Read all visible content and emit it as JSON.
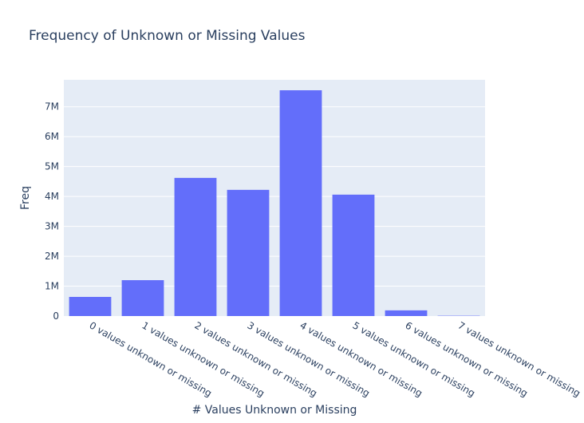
{
  "chart_data": {
    "type": "bar",
    "title": "Frequency of Unknown or Missing Values",
    "xlabel": "# Values Unknown or Missing",
    "ylabel": "Freq",
    "categories": [
      "0 values unknown or missing",
      "1 values unknown or missing",
      "2 values unknown or missing",
      "3 values unknown or missing",
      "4 values unknown or missing",
      "5 values unknown or missing",
      "6 values unknown or missing",
      "7 values unknown or missing"
    ],
    "values": [
      640000,
      1200000,
      4620000,
      4220000,
      7550000,
      4060000,
      190000,
      10000
    ],
    "ylim": [
      0,
      7900000
    ],
    "yticks": [
      0,
      1000000,
      2000000,
      3000000,
      4000000,
      5000000,
      6000000,
      7000000
    ],
    "ytick_labels": [
      "0",
      "1M",
      "2M",
      "3M",
      "4M",
      "5M",
      "6M",
      "7M"
    ],
    "grid": true,
    "colors": {
      "bar": "#636efa",
      "plot_bg": "#e5ecf6",
      "grid": "#ffffff",
      "text": "#2a3f5f"
    }
  }
}
